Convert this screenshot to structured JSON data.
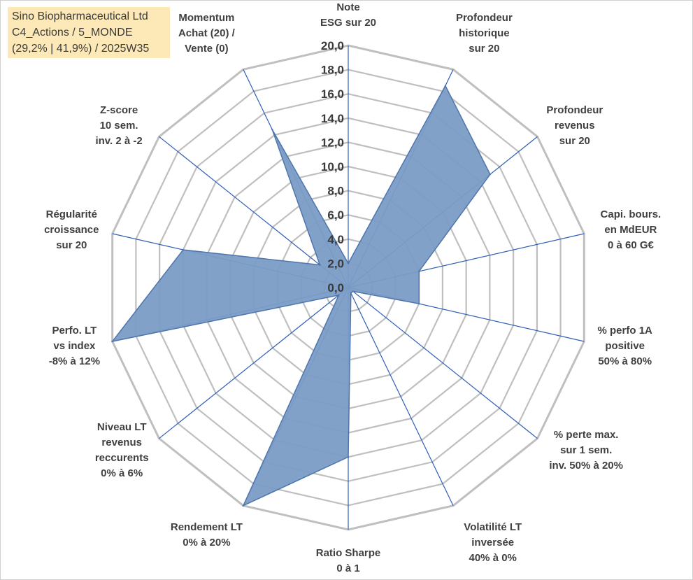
{
  "header": {
    "line1": "Sino Biopharmaceutical Ltd",
    "line2": "C4_Actions / 5_MONDE",
    "line3": "(29,2% | 41,9%) / 2025W35"
  },
  "chart_data": {
    "type": "radar",
    "rlim": [
      0,
      20
    ],
    "ticks": [
      "0,0",
      "2,0",
      "4,0",
      "6,0",
      "8,0",
      "10,0",
      "12,0",
      "14,0",
      "16,0",
      "18,0",
      "20,0"
    ],
    "grid": true,
    "axes": [
      "Note\nESG sur 20",
      "Profondeur\nhistorique\nsur 20",
      "Profondeur\nrevenus\nsur 20",
      "Capi. bours.\nen MdEUR\n0 à 60 G€",
      "% perfo 1A\npositive\n50% à 80%",
      "% perte max.\nsur 1 sem.\ninv. 50% à 20%",
      "Volatilité LT\ninversée\n40% à 0%",
      "Ratio Sharpe\n0 à 1",
      "Rendement LT\n0% à 20%",
      "Niveau LT\nrevenus\nreccurents\n0% à 6%",
      "Perfo. LT\nvs index\n-8% à 12%",
      "Régularité\ncroissance\nsur 20",
      "Z-score\n10 sem.\ninv. 2 à -2",
      "Momentum\nAchat (20) /\nVente (0)"
    ],
    "series": [
      {
        "values": [
          2.0,
          18.5,
          15.0,
          6.0,
          6.0,
          0.5,
          0.5,
          14.0,
          20.0,
          1.0,
          20.0,
          14.0,
          3.0,
          14.5
        ]
      }
    ],
    "colors": {
      "fill": "#7a9cc6",
      "stroke": "#4f75ad",
      "spokes": "#2f5fb5",
      "grid": "#bfbfbf"
    }
  }
}
